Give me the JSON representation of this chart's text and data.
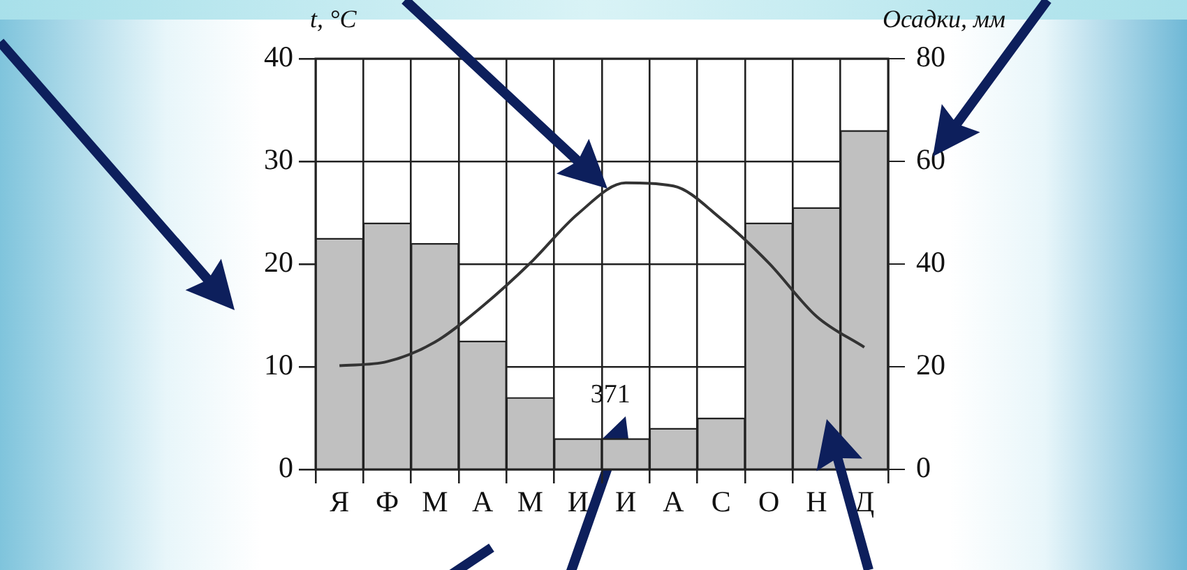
{
  "chart_data": {
    "type": "bar",
    "categories": [
      "Я",
      "Ф",
      "М",
      "А",
      "М",
      "И",
      "И",
      "А",
      "С",
      "О",
      "Н",
      "Д"
    ],
    "series": [
      {
        "type": "bar",
        "axis": "y2",
        "color": "#c0c0c0",
        "values": [
          45,
          48,
          44,
          25,
          14,
          6,
          6,
          8,
          10,
          48,
          51,
          66
        ]
      },
      {
        "type": "line",
        "color": "#333333",
        "values": [
          10.1,
          10.5,
          12.4,
          15.9,
          20.1,
          24.9,
          27.9,
          27.6,
          24.4,
          20.1,
          14.9,
          11.9
        ]
      }
    ],
    "ylim": [
      0,
      40
    ],
    "yticks": [
      0,
      10,
      20,
      30,
      40
    ],
    "y2lim": [
      0,
      80
    ],
    "y2ticks": [
      0,
      20,
      40,
      60,
      80
    ],
    "ylabel": "t, °C",
    "y2label": "Осадки, мм",
    "annotations": [
      "371"
    ],
    "grid": true,
    "marker": "none"
  }
}
